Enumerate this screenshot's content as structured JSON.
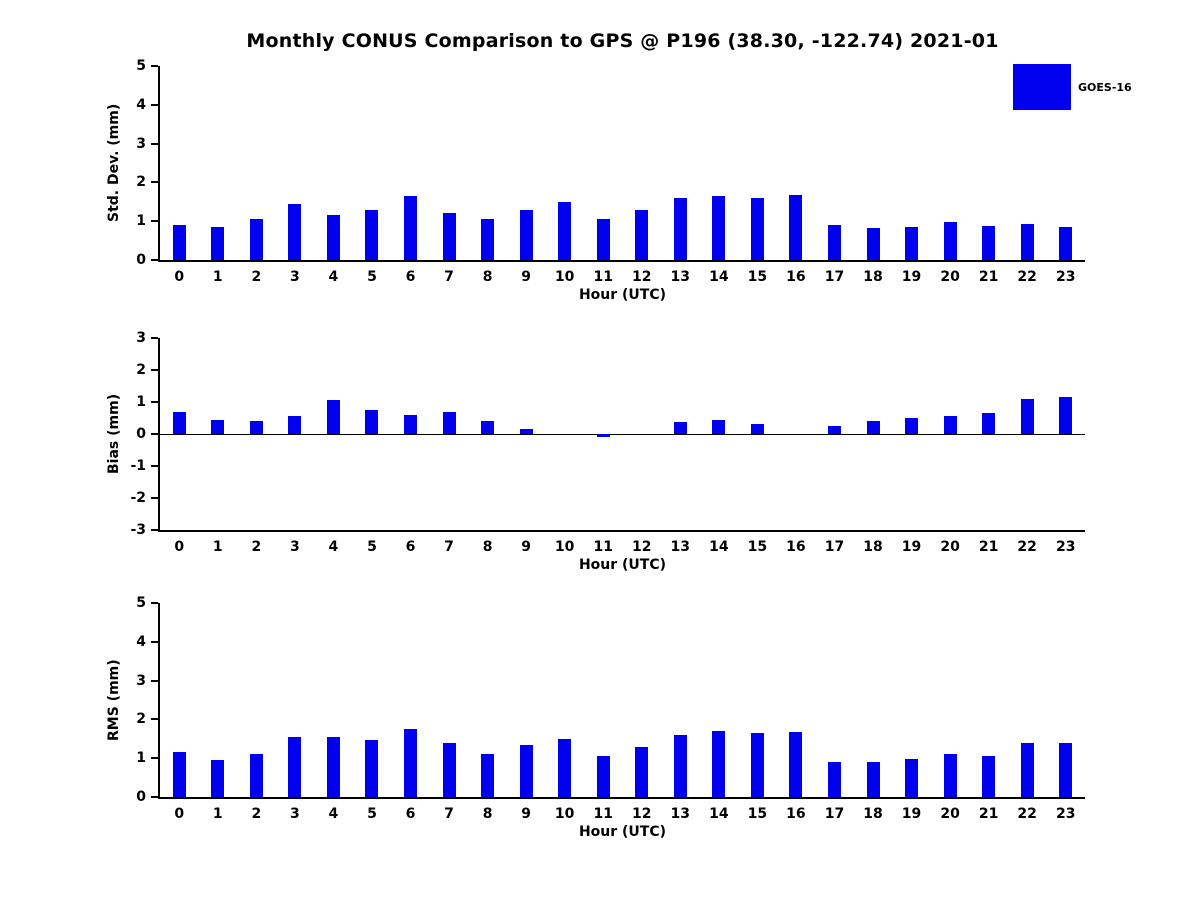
{
  "title": "Monthly CONUS Comparison to GPS @ P196 (38.30, -122.74) 2021-01",
  "legend": {
    "label": "GOES-16",
    "swatch_color": "#0000ee"
  },
  "chart_data": [
    {
      "type": "bar",
      "name": "std-dev",
      "ylabel": "Std. Dev. (mm)",
      "xlabel": "Hour (UTC)",
      "categories": [
        "0",
        "1",
        "2",
        "3",
        "4",
        "5",
        "6",
        "7",
        "8",
        "9",
        "10",
        "11",
        "12",
        "13",
        "14",
        "15",
        "16",
        "17",
        "18",
        "19",
        "20",
        "21",
        "22",
        "23"
      ],
      "values": [
        0.9,
        0.85,
        1.05,
        1.45,
        1.15,
        1.3,
        1.65,
        1.2,
        1.05,
        1.3,
        1.5,
        1.05,
        1.28,
        1.6,
        1.65,
        1.6,
        1.68,
        0.9,
        0.82,
        0.85,
        0.97,
        0.88,
        0.92,
        0.85
      ],
      "ylim": [
        0,
        5
      ],
      "yticks": [
        0,
        1,
        2,
        3,
        4,
        5
      ],
      "bar_color": "#0000ee",
      "grid": false,
      "legend_position": "top-right"
    },
    {
      "type": "bar",
      "name": "bias",
      "ylabel": "Bias (mm)",
      "xlabel": "Hour (UTC)",
      "categories": [
        "0",
        "1",
        "2",
        "3",
        "4",
        "5",
        "6",
        "7",
        "8",
        "9",
        "10",
        "11",
        "12",
        "13",
        "14",
        "15",
        "16",
        "17",
        "18",
        "19",
        "20",
        "21",
        "22",
        "23"
      ],
      "values": [
        0.7,
        0.45,
        0.4,
        0.55,
        1.05,
        0.75,
        0.6,
        0.68,
        0.4,
        0.15,
        0.0,
        -0.08,
        0.0,
        0.38,
        0.45,
        0.32,
        0.0,
        0.25,
        0.4,
        0.5,
        0.55,
        0.65,
        1.1,
        1.15
      ],
      "ylim": [
        -3,
        3
      ],
      "yticks": [
        -3,
        -2,
        -1,
        0,
        1,
        2,
        3
      ],
      "bar_color": "#0000ee",
      "grid": false,
      "legend_position": "none"
    },
    {
      "type": "bar",
      "name": "rms",
      "ylabel": "RMS (mm)",
      "xlabel": "Hour (UTC)",
      "categories": [
        "0",
        "1",
        "2",
        "3",
        "4",
        "5",
        "6",
        "7",
        "8",
        "9",
        "10",
        "11",
        "12",
        "13",
        "14",
        "15",
        "16",
        "17",
        "18",
        "19",
        "20",
        "21",
        "22",
        "23"
      ],
      "values": [
        1.15,
        0.95,
        1.1,
        1.55,
        1.55,
        1.48,
        1.75,
        1.4,
        1.1,
        1.35,
        1.5,
        1.05,
        1.3,
        1.6,
        1.7,
        1.65,
        1.68,
        0.9,
        0.9,
        0.98,
        1.12,
        1.05,
        1.4,
        1.4
      ],
      "ylim": [
        0,
        5
      ],
      "yticks": [
        0,
        1,
        2,
        3,
        4,
        5
      ],
      "bar_color": "#0000ee",
      "grid": false,
      "legend_position": "none"
    }
  ]
}
